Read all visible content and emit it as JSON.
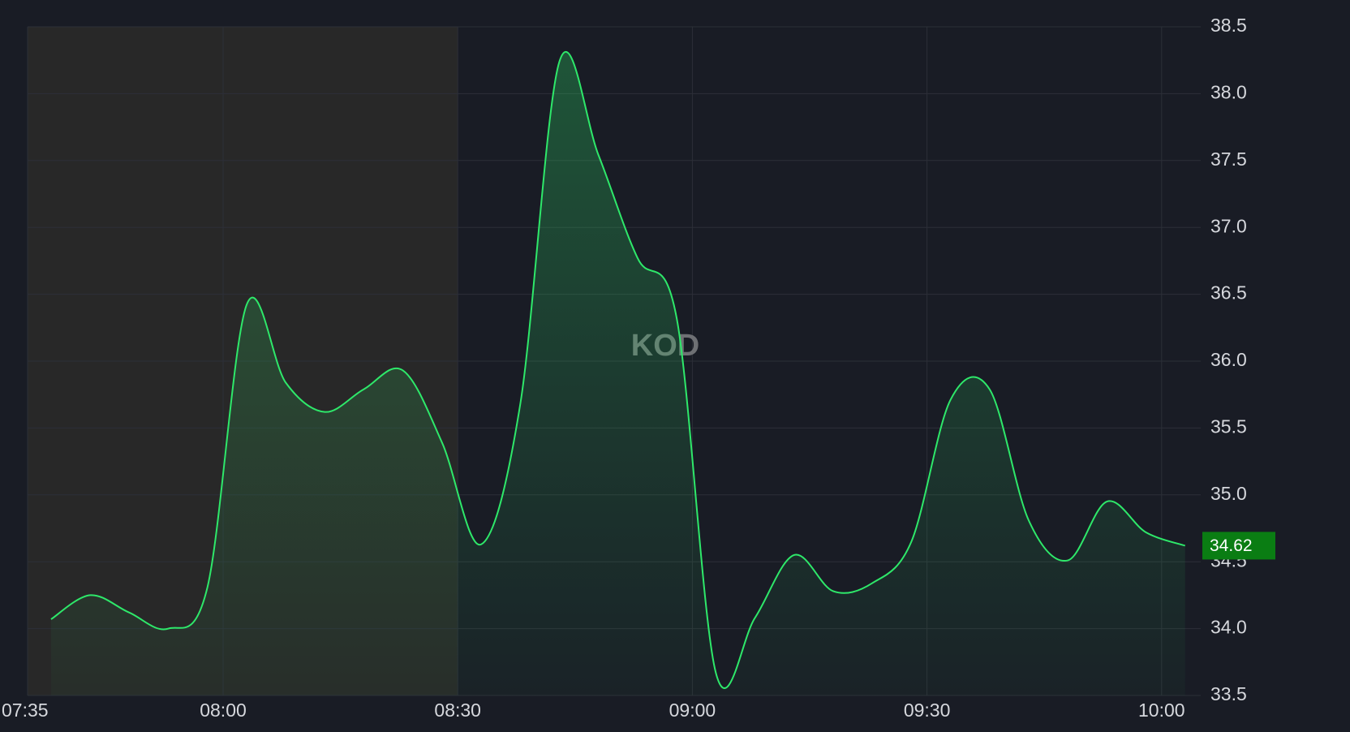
{
  "chart_data": {
    "type": "area",
    "watermark": "KOD",
    "x": [
      "07:38",
      "07:43",
      "07:48",
      "07:53",
      "07:58",
      "08:03",
      "08:08",
      "08:13",
      "08:18",
      "08:23",
      "08:28",
      "08:33",
      "08:38",
      "08:43",
      "08:48",
      "08:53",
      "08:58",
      "09:03",
      "09:08",
      "09:13",
      "09:18",
      "09:23",
      "09:28",
      "09:33",
      "09:38",
      "09:43",
      "09:48",
      "09:53",
      "09:58",
      "10:03"
    ],
    "series": [
      {
        "name": "KOD",
        "color": "#2ee86a",
        "values": [
          34.07,
          34.25,
          34.12,
          34.0,
          34.31,
          36.42,
          35.84,
          35.62,
          35.79,
          35.93,
          35.39,
          34.63,
          35.68,
          38.24,
          37.54,
          36.77,
          36.32,
          33.67,
          34.08,
          34.55,
          34.28,
          34.34,
          34.65,
          35.71,
          35.79,
          34.81,
          34.51,
          34.95,
          34.72,
          34.62
        ]
      }
    ],
    "last_value": {
      "value": 34.62,
      "label": "34.62",
      "color": "#0a7d13"
    },
    "xlim": [
      "07:35",
      "10:05"
    ],
    "xticks": [
      "07:35",
      "08:00",
      "08:30",
      "09:00",
      "09:30",
      "10:00"
    ],
    "ylim": [
      33.5,
      38.5
    ],
    "yticks": [
      33.5,
      {
        "value": 34,
        "label": "34.0"
      },
      34.5,
      {
        "value": 35,
        "label": "35.0"
      },
      35.5,
      {
        "value": 36,
        "label": "36.0"
      },
      36.5,
      {
        "value": 37,
        "label": "37.0"
      },
      37.5,
      {
        "value": 38,
        "label": "38.0"
      },
      38.5
    ],
    "premarket_range": [
      "07:35",
      "08:30"
    ],
    "grid": true
  }
}
